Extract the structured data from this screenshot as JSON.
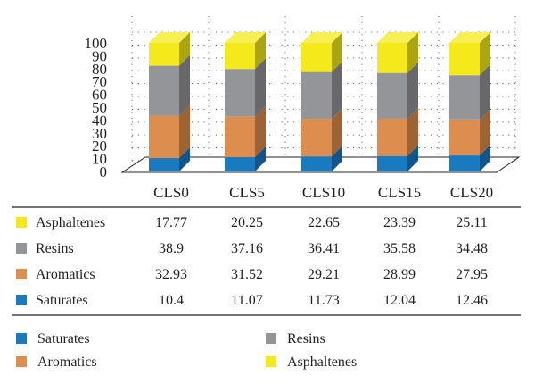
{
  "chart_data": {
    "type": "bar",
    "stacked": true,
    "three_d": true,
    "categories": [
      "CLS0",
      "CLS5",
      "CLS10",
      "CLS15",
      "CLS20"
    ],
    "series": [
      {
        "name": "Saturates",
        "values": [
          10.4,
          11.07,
          11.73,
          12.04,
          12.46
        ],
        "color": "#1a7abf"
      },
      {
        "name": "Aromatics",
        "values": [
          32.93,
          31.52,
          29.21,
          28.99,
          27.95
        ],
        "color": "#dd8d4d"
      },
      {
        "name": "Resins",
        "values": [
          38.9,
          37.16,
          36.41,
          35.58,
          34.48
        ],
        "color": "#949599"
      },
      {
        "name": "Asphaltenes",
        "values": [
          17.77,
          20.25,
          22.65,
          23.39,
          25.11
        ],
        "color": "#f4ea1b"
      }
    ],
    "table_rows": [
      {
        "label": "Asphaltenes",
        "values": [
          "17.77",
          "20.25",
          "22.65",
          "23.39",
          "25.11"
        ],
        "color": "#f4ea1b"
      },
      {
        "label": "Resins",
        "values": [
          "38.9",
          "37.16",
          "36.41",
          "35.58",
          "34.48"
        ],
        "color": "#949599"
      },
      {
        "label": "Aromatics",
        "values": [
          "32.93",
          "31.52",
          "29.21",
          "28.99",
          "27.95"
        ],
        "color": "#dd8d4d"
      },
      {
        "label": "Saturates",
        "values": [
          "10.4",
          "11.07",
          "11.73",
          "12.04",
          "12.46"
        ],
        "color": "#1a7abf"
      }
    ],
    "y_ticks": [
      "0",
      "10",
      "20",
      "30",
      "40",
      "50",
      "60",
      "70",
      "80",
      "90",
      "100"
    ],
    "ylim": [
      0,
      100
    ],
    "grid": "dotted",
    "legend": [
      {
        "label": "Saturates",
        "color": "#1a7abf"
      },
      {
        "label": "Resins",
        "color": "#949599"
      },
      {
        "label": "Aromatics",
        "color": "#dd8d4d"
      },
      {
        "label": "Asphaltenes",
        "color": "#f4ea1b"
      }
    ],
    "legend_placement": "bottom",
    "title": "",
    "xlabel": "",
    "ylabel": ""
  }
}
